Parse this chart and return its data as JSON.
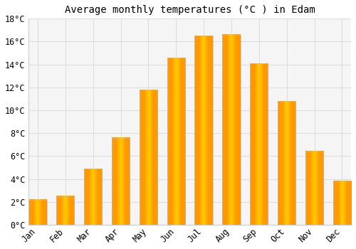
{
  "title": "Average monthly temperatures (°C ) in Edam",
  "months": [
    "Jan",
    "Feb",
    "Mar",
    "Apr",
    "May",
    "Jun",
    "Jul",
    "Aug",
    "Sep",
    "Oct",
    "Nov",
    "Dec"
  ],
  "values": [
    2.2,
    2.5,
    4.9,
    7.6,
    11.8,
    14.6,
    16.5,
    16.6,
    14.1,
    10.8,
    6.4,
    3.8
  ],
  "bar_color": "#FFAA00",
  "bar_edge_color": "#CC8800",
  "ylim": [
    0,
    18
  ],
  "yticks": [
    0,
    2,
    4,
    6,
    8,
    10,
    12,
    14,
    16,
    18
  ],
  "background_color": "#FFFFFF",
  "plot_bg_color": "#F5F5F5",
  "grid_color": "#DDDDDD",
  "title_fontsize": 10,
  "tick_fontsize": 8.5,
  "font_family": "monospace",
  "bar_width": 0.65
}
